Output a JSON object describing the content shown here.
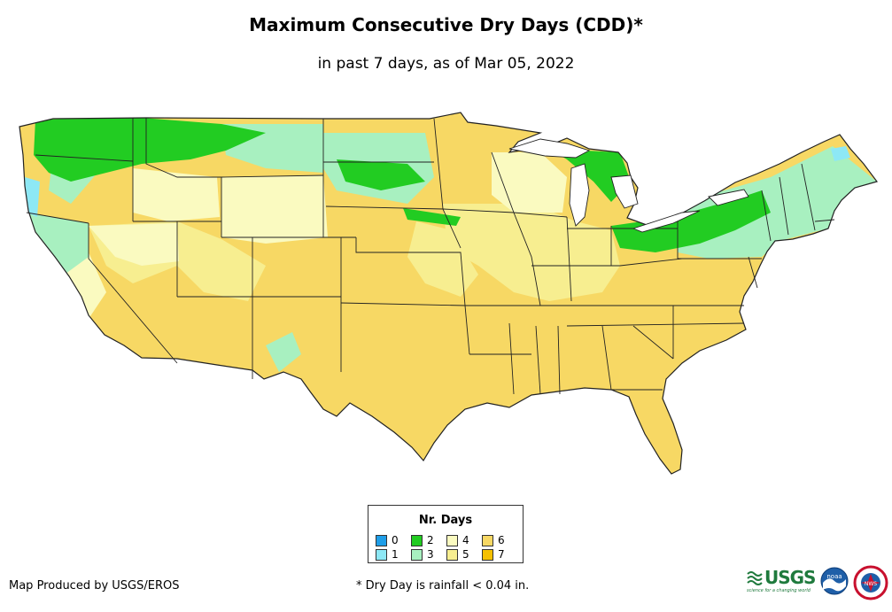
{
  "title": "Maximum Consecutive Dry Days (CDD)*",
  "subtitle": "in past 7 days, as of Mar 05, 2022",
  "legend": {
    "title": "Nr. Days",
    "items": [
      {
        "label": "0",
        "color": "#1f9ee8"
      },
      {
        "label": "1",
        "color": "#8de8f5"
      },
      {
        "label": "2",
        "color": "#22cc22"
      },
      {
        "label": "3",
        "color": "#a8f0c0"
      },
      {
        "label": "4",
        "color": "#fafac0"
      },
      {
        "label": "5",
        "color": "#f7ee90"
      },
      {
        "label": "6",
        "color": "#f7d864"
      },
      {
        "label": "7",
        "color": "#f5c000"
      }
    ]
  },
  "footer": {
    "producer": "Map Produced by USGS/EROS",
    "note": "* Dry Day is rainfall < 0.04 in."
  },
  "logos": {
    "usgs": "USGS",
    "usgs_tagline": "science for a changing world",
    "noaa": "noaa",
    "nws": "NWS"
  },
  "colors": {
    "green": "#22cc22",
    "mint": "#a8f0c0",
    "cyan": "#8de8f5",
    "pale": "#fafac0",
    "lightyellow": "#f7ee90",
    "yellow": "#f7d864",
    "boundary": "#222222"
  }
}
